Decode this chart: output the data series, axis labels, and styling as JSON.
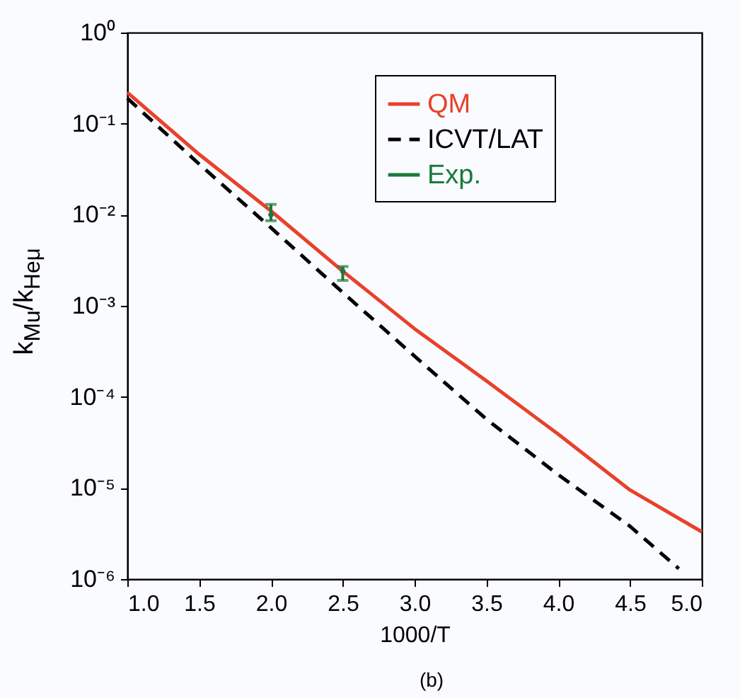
{
  "chart_data": {
    "type": "line",
    "xlabel": "1000/T",
    "ylabel": "k$_{Mu}$/k$_{Heμ}$",
    "annotations": [
      "(b)"
    ],
    "log": "y",
    "grid": false,
    "legend": "top right",
    "xlim": [
      1.0,
      5.0
    ],
    "xticks": [
      {
        "value": 1.0,
        "label": "1.0"
      },
      {
        "value": 1.5,
        "label": "1.5"
      },
      {
        "value": 2.0,
        "label": "2.0"
      },
      {
        "value": 2.5,
        "label": "2.5"
      },
      {
        "value": 3.0,
        "label": "3.0"
      },
      {
        "value": 3.5,
        "label": "3.5"
      },
      {
        "value": 4.0,
        "label": "4.0"
      },
      {
        "value": 4.5,
        "label": "4.5"
      },
      {
        "value": 5.0,
        "label": "5.0"
      }
    ],
    "ylim": [
      1e-06,
      1
    ],
    "yticks": [
      {
        "value": 1e-06,
        "label": "10⁻⁶"
      },
      {
        "value": 1e-05,
        "label": "10⁻⁵"
      },
      {
        "value": 0.0001,
        "label": "10⁻⁴"
      },
      {
        "value": 0.001,
        "label": "10⁻³"
      },
      {
        "value": 0.01,
        "label": "10⁻²"
      },
      {
        "value": 0.1,
        "label": "10⁻¹"
      },
      {
        "value": 1,
        "label": "10⁰"
      }
    ],
    "series": [
      {
        "name": "QM",
        "color": "#e8412c",
        "line_style": "solid",
        "x": [
          1.0,
          1.5,
          2.0,
          2.5,
          3.0,
          3.5,
          4.0,
          4.5,
          5.0
        ],
        "values": [
          0.22,
          0.046,
          0.011,
          0.0024,
          0.00056,
          0.00015,
          3.9e-05,
          9.5e-06,
          3.3e-06
        ]
      },
      {
        "name": "ICVT/LAT",
        "color": "#000000",
        "line_style": "dashed",
        "x": [
          1.0,
          1.5,
          2.0,
          2.5,
          3.0,
          3.5,
          4.0,
          4.5,
          4.84
        ],
        "values": [
          0.19,
          0.036,
          0.0072,
          0.0014,
          0.00028,
          5.7e-05,
          1.4e-05,
          3.8e-06,
          1.3e-06
        ]
      },
      {
        "name": "Exp.",
        "type": "scatter",
        "color": "#1a7a3c",
        "x": [
          2.0,
          2.5
        ],
        "values": [
          0.01,
          0.0024
        ],
        "errors": [
          [
            0.0086,
            0.013
          ],
          [
            0.0019,
            0.0027
          ]
        ]
      }
    ]
  }
}
